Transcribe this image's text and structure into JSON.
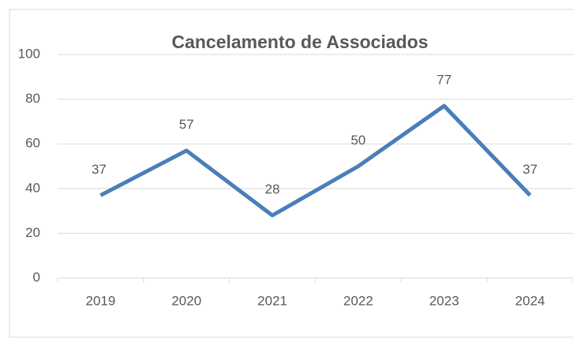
{
  "chart_data": {
    "type": "line",
    "title": "Cancelamento de Associados",
    "categories": [
      "2019",
      "2020",
      "2021",
      "2022",
      "2023",
      "2024"
    ],
    "values": [
      37,
      57,
      28,
      50,
      77,
      37
    ],
    "color": "#4a7ebb",
    "ylim": [
      0,
      100
    ],
    "yticks": [
      0,
      20,
      40,
      60,
      80,
      100
    ],
    "grid": true
  }
}
